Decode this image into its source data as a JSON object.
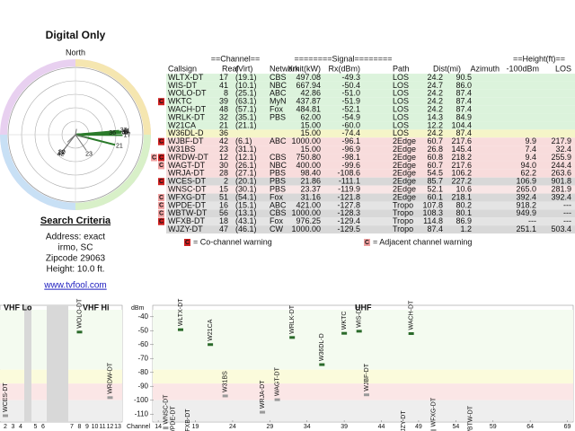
{
  "left": {
    "title": "Digital Only",
    "north": "North",
    "search_title": "Search Criteria",
    "address": [
      "Address: exact",
      "irmo, SC",
      "Zipcode 29063",
      "Height: 10.0 ft."
    ],
    "link": "www.tvfool.com"
  },
  "table": {
    "group_headers": [
      "==Channel==",
      "========Signal========",
      "==Height(ft)=="
    ],
    "columns": [
      "Callsign",
      "Real",
      "(Virt)",
      "Network",
      "Xmit(kW)",
      "Rx(dBm)",
      "Path",
      "Dist(mi)",
      "Azimuth",
      "-100dBm",
      "LOS"
    ],
    "rows": [
      {
        "callsign": "WLTX-DT",
        "real": 17,
        "virt": "(19.1)",
        "network": "CBS",
        "xmit": "497.08",
        "rx": "-49.3",
        "path": "LOS",
        "dist": "24.2",
        "azimuth": "90.5",
        "h100": null,
        "los": null,
        "color": "#dcf3dc",
        "az_color": "#8a8a00",
        "warnings": []
      },
      {
        "callsign": "WIS-DT",
        "real": 41,
        "virt": "(10.1)",
        "network": "NBC",
        "xmit": "667.94",
        "rx": "-50.4",
        "path": "LOS",
        "dist": "24.7",
        "azimuth": "86.0",
        "h100": null,
        "los": null,
        "color": "#dcf3dc",
        "az_color": "#8a8a00",
        "warnings": []
      },
      {
        "callsign": "WOLO-DT",
        "real": 8,
        "virt": "(25.1)",
        "network": "ABC",
        "xmit": "42.86",
        "rx": "-51.0",
        "path": "LOS",
        "dist": "24.2",
        "azimuth": "87.4",
        "h100": null,
        "los": null,
        "color": "#dcf3dc",
        "az_color": "#8a8a00",
        "warnings": []
      },
      {
        "callsign": "WKTC",
        "real": 39,
        "virt": "(63.1)",
        "network": "MyN",
        "xmit": "437.87",
        "rx": "-51.9",
        "path": "LOS",
        "dist": "24.2",
        "azimuth": "87.4",
        "h100": null,
        "los": null,
        "color": "#dcf3dc",
        "az_color": "#8a8a00",
        "warnings": [
          "co"
        ]
      },
      {
        "callsign": "WACH-DT",
        "real": 48,
        "virt": "(57.1)",
        "network": "Fox",
        "xmit": "484.81",
        "rx": "-52.1",
        "path": "LOS",
        "dist": "24.2",
        "azimuth": "87.4",
        "h100": null,
        "los": null,
        "color": "#dcf3dc",
        "az_color": "#8a8a00",
        "warnings": []
      },
      {
        "callsign": "WRLK-DT",
        "real": 32,
        "virt": "(35.1)",
        "network": "PBS",
        "xmit": "62.00",
        "rx": "-54.9",
        "path": "LOS",
        "dist": "14.3",
        "azimuth": "84.9",
        "h100": null,
        "los": null,
        "color": "#dcf3dc",
        "az_color": "#8a8a00",
        "warnings": []
      },
      {
        "callsign": "W21CA",
        "real": 21,
        "virt": "(21.1)",
        "network": null,
        "xmit": "15.00",
        "rx": "-60.0",
        "path": "LOS",
        "dist": "12.2",
        "azimuth": "104.4",
        "h100": null,
        "los": null,
        "color": "#dcf3dc",
        "az_color": "#8a8a00",
        "warnings": []
      },
      {
        "callsign": "W36DL-D",
        "real": 36,
        "virt": null,
        "network": null,
        "xmit": "15.00",
        "rx": "-74.4",
        "path": "LOS",
        "dist": "24.2",
        "azimuth": "87.4",
        "h100": null,
        "los": null,
        "color": "#f5f5c8",
        "az_color": "#8a8a00",
        "warnings": []
      },
      {
        "callsign": "WJBF-DT",
        "real": 42,
        "virt": "(6.1)",
        "network": "ABC",
        "xmit": "1000.00",
        "rx": "-96.1",
        "path": "2Edge",
        "dist": "60.7",
        "azimuth": "217.6",
        "h100": "9.9",
        "los": "217.9",
        "color": "#f8dcdc",
        "az_color": "#2040c0",
        "warnings": [
          "co"
        ]
      },
      {
        "callsign": "W31BS",
        "real": 23,
        "virt": "(31.1)",
        "network": null,
        "xmit": "15.00",
        "rx": "-96.9",
        "path": "2Edge",
        "dist": "26.8",
        "azimuth": "145.4",
        "h100": "7.4",
        "los": "32.4",
        "color": "#f8dcdc",
        "az_color": "#2040c0",
        "warnings": []
      },
      {
        "callsign": "WRDW-DT",
        "real": 12,
        "virt": "(12.1)",
        "network": "CBS",
        "xmit": "750.80",
        "rx": "-98.1",
        "path": "2Edge",
        "dist": "60.8",
        "azimuth": "218.2",
        "h100": "9.4",
        "los": "255.9",
        "color": "#f8dcdc",
        "az_color": "#2040c0",
        "warnings": [
          "co",
          "adj"
        ]
      },
      {
        "callsign": "WAGT-DT",
        "real": 30,
        "virt": "(26.1)",
        "network": "NBC",
        "xmit": "400.00",
        "rx": "-99.6",
        "path": "2Edge",
        "dist": "60.7",
        "azimuth": "217.6",
        "h100": "94.0",
        "los": "244.4",
        "color": "#f8dcdc",
        "az_color": "#2040c0",
        "warnings": [
          "adj"
        ]
      },
      {
        "callsign": "WRJA-DT",
        "real": 28,
        "virt": "(27.1)",
        "network": "PBS",
        "xmit": "98.40",
        "rx": "-108.6",
        "path": "2Edge",
        "dist": "54.5",
        "azimuth": "106.2",
        "h100": "62.2",
        "los": "263.6",
        "color": "#f8dcdc",
        "az_color": "#8a8a00",
        "warnings": []
      },
      {
        "callsign": "WCES-DT",
        "real": 2,
        "virt": "(20.1)",
        "network": "PBS",
        "xmit": "21.86",
        "rx": "-111.1",
        "path": "2Edge",
        "dist": "85.7",
        "azimuth": "227.2",
        "h100": "106.9",
        "los": "901.8",
        "color": "#d8d8d8",
        "az_color": "#2040c0",
        "warnings": [
          "co"
        ]
      },
      {
        "callsign": "WNSC-DT",
        "real": 15,
        "virt": "(30.1)",
        "network": "PBS",
        "xmit": "23.37",
        "rx": "-119.9",
        "path": "2Edge",
        "dist": "52.1",
        "azimuth": "10.6",
        "h100": "265.0",
        "los": "281.9",
        "color": "#f8e6e6",
        "az_color": "#d02020",
        "warnings": []
      },
      {
        "callsign": "WFXG-DT",
        "real": 51,
        "virt": "(54.1)",
        "network": "Fox",
        "xmit": "31.16",
        "rx": "-121.8",
        "path": "2Edge",
        "dist": "60.1",
        "azimuth": "218.1",
        "h100": "392.4",
        "los": "392.4",
        "color": "#d8d8d8",
        "az_color": "#2040c0",
        "warnings": [
          "adj"
        ]
      },
      {
        "callsign": "WPDE-DT",
        "real": 16,
        "virt": "(15.1)",
        "network": "ABC",
        "xmit": "421.00",
        "rx": "-127.8",
        "path": "Tropo",
        "dist": "107.8",
        "azimuth": "80.2",
        "h100": "918.2",
        "los": "---",
        "color": "#e4e4e4",
        "az_color": "#8a8a00",
        "warnings": [
          "adj"
        ]
      },
      {
        "callsign": "WBTW-DT",
        "real": 56,
        "virt": "(13.1)",
        "network": "CBS",
        "xmit": "1000.00",
        "rx": "-128.3",
        "path": "Tropo",
        "dist": "108.3",
        "azimuth": "80.1",
        "h100": "949.9",
        "los": "---",
        "color": "#d8d8d8",
        "az_color": "#8a8a00",
        "warnings": [
          "adj"
        ]
      },
      {
        "callsign": "WFXB-DT",
        "real": 18,
        "virt": "(43.1)",
        "network": "Fox",
        "xmit": "976.25",
        "rx": "-129.4",
        "path": "Tropo",
        "dist": "114.8",
        "azimuth": "86.9",
        "h100": "---",
        "los": "---",
        "color": "#e4e4e4",
        "az_color": "#8a8a00",
        "warnings": [
          "co"
        ]
      },
      {
        "callsign": "WJZY-DT",
        "real": 47,
        "virt": "(46.1)",
        "network": "CW",
        "xmit": "1000.00",
        "rx": "-129.5",
        "path": "Tropo",
        "dist": "87.4",
        "azimuth": "1.2",
        "h100": "251.1",
        "los": "503.4",
        "color": "#d8d8d8",
        "az_color": "#d02020",
        "warnings": []
      }
    ],
    "legend": {
      "co": {
        "mark": "C",
        "text": "= Co-channel warning",
        "color": "#d02020"
      },
      "adj": {
        "mark": "C",
        "text": "= Adjacent channel warning",
        "color": "#f0a0a0"
      }
    }
  },
  "spectrum": {
    "vhf_lo": "VHF Lo",
    "vhf_hi": "VHF Hi",
    "uhf": "UHF",
    "axis_label": "dBm",
    "channel_label": "Channel",
    "ylim": [
      -35,
      -115
    ],
    "yticks": [
      -40,
      -50,
      -60,
      -70,
      -80,
      -90,
      -100,
      -110
    ],
    "vhf_channels": [
      2,
      3,
      4,
      5,
      6,
      7,
      8,
      9,
      10,
      11,
      12,
      13
    ],
    "uhf_channels": [
      14,
      19,
      24,
      29,
      34,
      39,
      44,
      49,
      54,
      59,
      64,
      69
    ]
  }
}
